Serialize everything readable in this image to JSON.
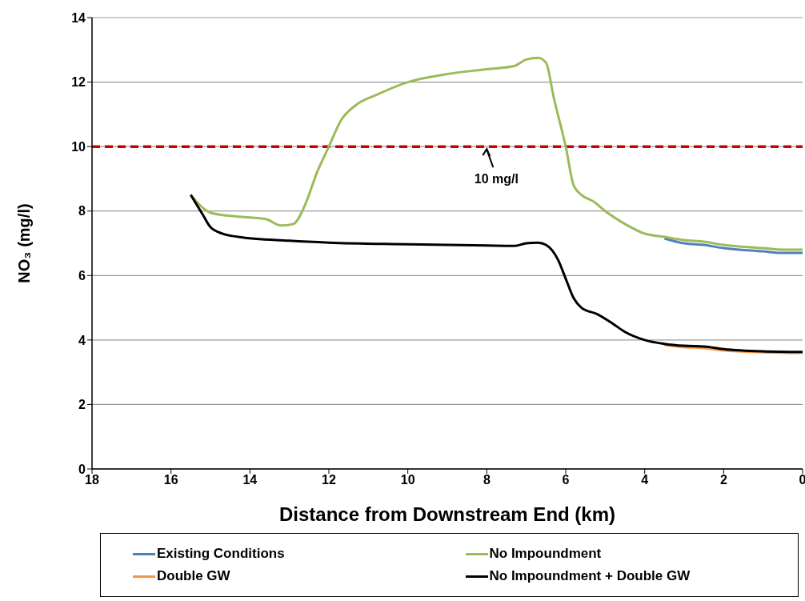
{
  "chart_data": {
    "type": "line",
    "xlabel": "Distance from Downstream End (km)",
    "ylabel": "NO₃ (mg/l)",
    "xlim": [
      18,
      0
    ],
    "xticks": [
      18,
      16,
      14,
      12,
      10,
      8,
      6,
      4,
      2,
      0
    ],
    "ylim": [
      0,
      14
    ],
    "yticks": [
      0,
      2,
      4,
      6,
      8,
      10,
      12,
      14
    ],
    "grid": "y",
    "legend": "bottom",
    "marker": "none",
    "line_style": "solid",
    "ref_lines": [
      {
        "axis": "y",
        "value": 10,
        "color": "#cc0000",
        "line_style": "dashed"
      }
    ],
    "annotations": [
      {
        "text": "10 mg/l",
        "x": 8,
        "y": 10
      }
    ],
    "series": [
      {
        "name": "Existing Conditions",
        "color": "#4f81bd",
        "x": [
          3.5,
          3,
          2.5,
          2,
          1,
          0.5,
          0
        ],
        "values": [
          7.15,
          7,
          6.95,
          6.85,
          6.75,
          6.7,
          6.7
        ]
      },
      {
        "name": "No Impoundment",
        "color": "#9bbb59",
        "x": [
          15.5,
          15,
          14.5,
          14,
          13.6,
          13.2,
          12.9,
          12.6,
          12.3,
          12,
          11.7,
          11.3,
          10.8,
          10,
          9,
          8,
          7.3,
          7,
          6.7,
          6.5,
          6.3,
          6,
          5.8,
          5.6,
          5.3,
          5,
          4.5,
          4,
          3.5,
          3,
          2.5,
          2,
          1,
          0.5,
          0
        ],
        "values": [
          8.5,
          7.95,
          7.85,
          7.8,
          7.75,
          7.55,
          7.6,
          8.2,
          9.2,
          10,
          10.8,
          11.3,
          11.6,
          12,
          12.25,
          12.4,
          12.5,
          12.7,
          12.75,
          12.6,
          11.5,
          10,
          8.8,
          8.5,
          8.3,
          8,
          7.6,
          7.3,
          7.2,
          7.1,
          7.05,
          6.95,
          6.85,
          6.8,
          6.8
        ]
      },
      {
        "name": "Double GW",
        "color": "#f79646",
        "x": [
          3.5,
          3,
          2.5,
          2,
          1,
          0
        ],
        "values": [
          3.85,
          3.78,
          3.75,
          3.68,
          3.62,
          3.6
        ]
      },
      {
        "name": "No Impoundment + Double GW",
        "color": "#000000",
        "x": [
          15.5,
          15.2,
          15,
          14.7,
          14.3,
          13,
          12,
          10,
          8,
          7.3,
          7,
          6.7,
          6.5,
          6.2,
          6,
          5.8,
          5.6,
          5.2,
          4.8,
          4.5,
          4,
          3.5,
          3,
          2.5,
          2,
          1,
          0
        ],
        "values": [
          8.5,
          7.9,
          7.5,
          7.3,
          7.2,
          7.08,
          7.02,
          6.97,
          6.93,
          6.92,
          7,
          7.02,
          6.95,
          6.5,
          5.9,
          5.3,
          5,
          4.8,
          4.5,
          4.25,
          4,
          3.88,
          3.82,
          3.8,
          3.72,
          3.65,
          3.63
        ]
      }
    ]
  }
}
